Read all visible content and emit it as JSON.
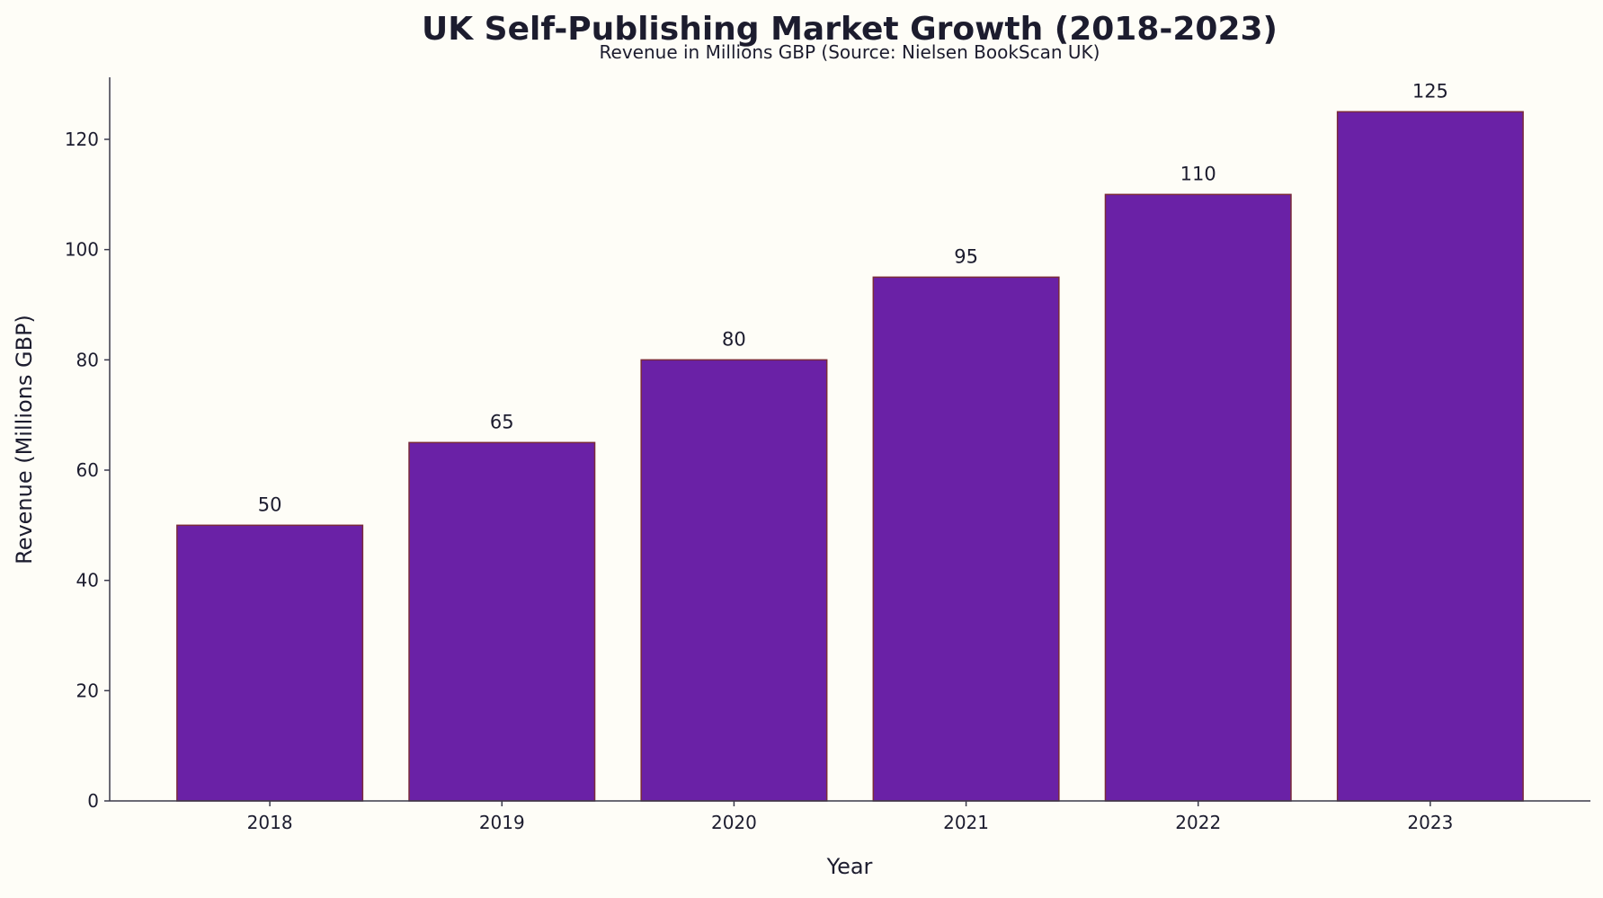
{
  "chart_data": {
    "type": "bar",
    "title": "UK Self-Publishing Market Growth (2018-2023)",
    "subtitle": "Revenue in Millions GBP (Source: Nielsen BookScan UK)",
    "xlabel": "Year",
    "ylabel": "Revenue (Millions GBP)",
    "categories": [
      "2018",
      "2019",
      "2020",
      "2021",
      "2022",
      "2023"
    ],
    "values": [
      50,
      65,
      80,
      95,
      110,
      125
    ],
    "data_labels": [
      "50",
      "65",
      "80",
      "95",
      "110",
      "125"
    ],
    "ylim": [
      0,
      131.25
    ],
    "yticks": [
      0,
      20,
      40,
      60,
      80,
      100,
      120
    ],
    "grid": false,
    "colors": {
      "bar": "#6a21a6",
      "bar_edge": "#7a2a3a",
      "axis": "#3a3a4a",
      "background": "#fefdf7"
    }
  }
}
